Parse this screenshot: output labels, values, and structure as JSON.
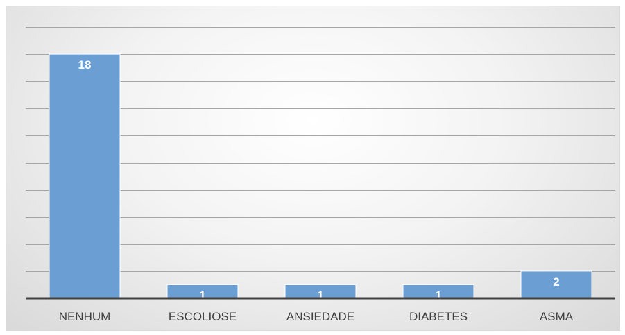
{
  "chart_data": {
    "type": "bar",
    "categories": [
      "NENHUM",
      "ESCOLIOSE",
      "ANSIEDADE",
      "DIABETES",
      "ASMA"
    ],
    "values": [
      18,
      1,
      1,
      1,
      2
    ],
    "data_labels": [
      "18",
      "1",
      "1",
      "1",
      "2"
    ],
    "ylim": [
      0,
      20
    ],
    "y_tick_step": 2,
    "grid": true,
    "legend": "none",
    "y_axis_labels_visible": false,
    "bar_color": "#6b9fd4"
  }
}
